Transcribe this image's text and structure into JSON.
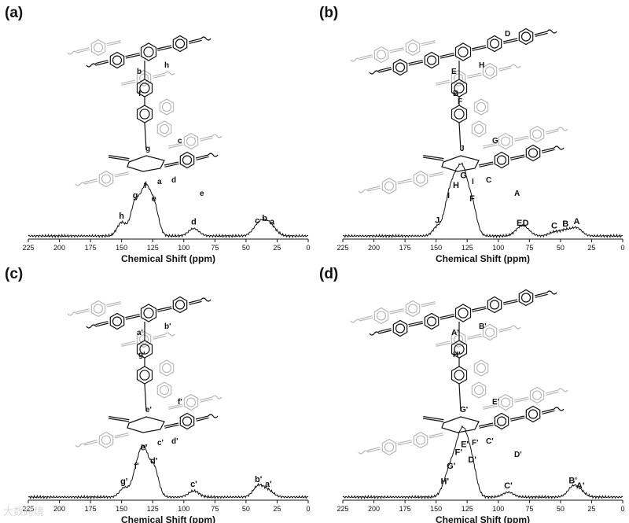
{
  "watermark": "大数跨境",
  "chart_data": [
    {
      "panel": "(a)",
      "type": "line",
      "xlabel": "Chemical Shift (ppm)",
      "xlim": [
        225,
        0
      ],
      "xticks": [
        225,
        200,
        175,
        150,
        125,
        100,
        75,
        50,
        25,
        0
      ],
      "structure_labels": [
        "b",
        "h",
        "f",
        "g",
        "c",
        "a",
        "d",
        "e"
      ],
      "peaks": [
        {
          "label": "h",
          "ppm": 150,
          "height": 0.22
        },
        {
          "label": "g",
          "ppm": 139,
          "height": 0.55
        },
        {
          "label": "f",
          "ppm": 131,
          "height": 0.72
        },
        {
          "label": "e",
          "ppm": 124,
          "height": 0.5
        },
        {
          "label": "d",
          "ppm": 92,
          "height": 0.12
        },
        {
          "label": "c",
          "ppm": 41,
          "height": 0.14
        },
        {
          "label": "b",
          "ppm": 35,
          "height": 0.18
        },
        {
          "label": "a",
          "ppm": 29,
          "height": 0.12
        }
      ]
    },
    {
      "panel": "(b)",
      "type": "line",
      "xlabel": "Chemical Shift (ppm)",
      "xlim": [
        225,
        0
      ],
      "xticks": [
        225,
        200,
        175,
        150,
        125,
        100,
        75,
        50,
        25,
        0
      ],
      "structure_labels": [
        "E",
        "H",
        "B",
        "J",
        "G",
        "I",
        "C",
        "A",
        "D",
        "F"
      ],
      "peaks": [
        {
          "label": "J",
          "ppm": 149,
          "height": 0.15
        },
        {
          "label": "I",
          "ppm": 140,
          "height": 0.55
        },
        {
          "label": "H",
          "ppm": 134,
          "height": 0.72
        },
        {
          "label": "G",
          "ppm": 128,
          "height": 0.88
        },
        {
          "label": "F",
          "ppm": 121,
          "height": 0.5
        },
        {
          "label": "E",
          "ppm": 83,
          "height": 0.1
        },
        {
          "label": "D",
          "ppm": 78,
          "height": 0.1
        },
        {
          "label": "C",
          "ppm": 55,
          "height": 0.06
        },
        {
          "label": "B",
          "ppm": 46,
          "height": 0.09
        },
        {
          "label": "A",
          "ppm": 37,
          "height": 0.13
        }
      ]
    },
    {
      "panel": "(c)",
      "type": "line",
      "xlabel": "Chemical Shift (ppm)",
      "xlim": [
        225,
        0
      ],
      "xticks": [
        225,
        200,
        175,
        150,
        125,
        100,
        75,
        50,
        25,
        0
      ],
      "structure_labels": [
        "a'",
        "b'",
        "g'",
        "e'",
        "f'",
        "c'",
        "d'"
      ],
      "peaks": [
        {
          "label": "g'",
          "ppm": 148,
          "height": 0.15
        },
        {
          "label": "f'",
          "ppm": 138,
          "height": 0.4
        },
        {
          "label": "e'",
          "ppm": 132,
          "height": 0.7
        },
        {
          "label": "d'",
          "ppm": 124,
          "height": 0.48
        },
        {
          "label": "c'",
          "ppm": 92,
          "height": 0.1
        },
        {
          "label": "b'",
          "ppm": 40,
          "height": 0.18
        },
        {
          "label": "a'",
          "ppm": 32,
          "height": 0.1
        }
      ]
    },
    {
      "panel": "(d)",
      "type": "line",
      "xlabel": "Chemical Shift (ppm)",
      "xlim": [
        225,
        0
      ],
      "xticks": [
        225,
        200,
        175,
        150,
        125,
        100,
        75,
        50,
        25,
        0
      ],
      "structure_labels": [
        "A'",
        "B'",
        "H'",
        "G'",
        "E'",
        "F'",
        "C'",
        "D'"
      ],
      "peaks": [
        {
          "label": "H'",
          "ppm": 143,
          "height": 0.15
        },
        {
          "label": "G'",
          "ppm": 138,
          "height": 0.4
        },
        {
          "label": "F'",
          "ppm": 132,
          "height": 0.62
        },
        {
          "label": "E'",
          "ppm": 127,
          "height": 0.75
        },
        {
          "label": "D'",
          "ppm": 121,
          "height": 0.5
        },
        {
          "label": "C'",
          "ppm": 92,
          "height": 0.08
        },
        {
          "label": "B'",
          "ppm": 40,
          "height": 0.16
        },
        {
          "label": "A'",
          "ppm": 34,
          "height": 0.08
        }
      ]
    }
  ]
}
